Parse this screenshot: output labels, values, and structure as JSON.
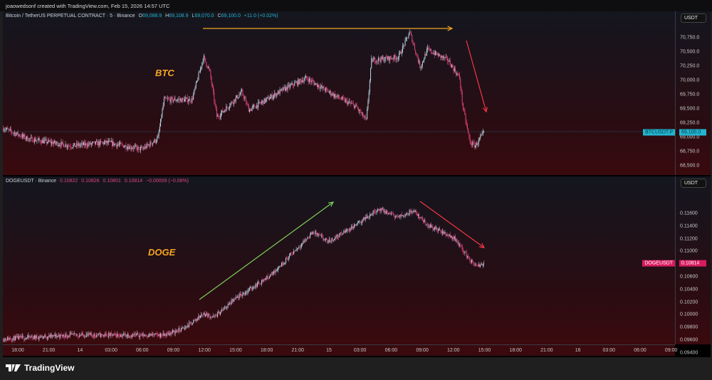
{
  "header": {
    "text": "joaowedsonf created with TradingView.com, Feb 15, 2026 14:57 UTC"
  },
  "btc": {
    "title": "Bitcoin / TetherUS PERPETUAL CONTRACT · 5 · Binance",
    "o": "O",
    "o_val": "69,088.9",
    "h": "H",
    "h_val": "69,108.9",
    "l": "L",
    "l_val": "69,070.0",
    "c": "C",
    "c_val": "69,100.0",
    "change": "+11.0 (+0.02%)",
    "currency": "USDT",
    "symbol_tag": "BTCUSDT.P",
    "last_price": "69,100.0",
    "label": "BTC",
    "ticks": [
      "70,750.0",
      "70,500.0",
      "70,250.0",
      "70,000.0",
      "69,750.0",
      "69,500.0",
      "69,250.0",
      "69,000.0",
      "68,750.0",
      "68,500.0"
    ]
  },
  "doge": {
    "title": "DOGEUSDT · Binance",
    "o_val": "0.10822",
    "h_val": "0.10826",
    "l_val": "0.10801",
    "c_val": "0.10814",
    "change": "−0.00009 (−0.08%)",
    "currency": "USDT",
    "symbol_tag": "DOGEUSDT",
    "last_price": "0.10814",
    "label": "DOGE",
    "ticks": [
      "0.11600",
      "0.11400",
      "0.11200",
      "0.11000",
      "0.10600",
      "0.10400",
      "0.10200",
      "0.10000",
      "0.09800",
      "0.09600",
      "0.09400"
    ]
  },
  "time_axis": [
    "18:00",
    "21:00",
    "14",
    "03:00",
    "06:00",
    "09:00",
    "12:00",
    "15:00",
    "18:00",
    "21:00",
    "15",
    "03:00",
    "06:00",
    "09:00",
    "12:00",
    "15:00",
    "18:00",
    "21:00",
    "16",
    "03:00",
    "06:00",
    "09:00"
  ],
  "footer": {
    "brand": "TradingView"
  },
  "colors": {
    "up": "#b8d4e3",
    "down": "#e0457b",
    "btc_tag": "#22b5d0",
    "doge_tag": "#d81b60",
    "orange": "#f5a623",
    "red": "#f23645",
    "green": "#7ccf5a"
  },
  "chart_data": [
    {
      "type": "candlestick",
      "name": "BTCUSDT.P",
      "interval_minutes": 5,
      "x_unit": "hours since Feb 13 18:00",
      "ylim": [
        68400,
        70900
      ],
      "path": [
        [
          -1.4,
          69160
        ],
        [
          1.0,
          68975
        ],
        [
          5.2,
          68850
        ],
        [
          8.6,
          68910
        ],
        [
          12.0,
          68790
        ],
        [
          13.5,
          68975
        ],
        [
          14.1,
          69660
        ],
        [
          16.8,
          69660
        ],
        [
          17.9,
          70410
        ],
        [
          18.5,
          70160
        ],
        [
          19.2,
          69350
        ],
        [
          21.6,
          69790
        ],
        [
          22.3,
          69480
        ],
        [
          25.7,
          69850
        ],
        [
          27.8,
          70040
        ],
        [
          30.6,
          69730
        ],
        [
          32.6,
          69540
        ],
        [
          33.6,
          69290
        ],
        [
          34.1,
          70350
        ],
        [
          36.7,
          70410
        ],
        [
          37.8,
          70850
        ],
        [
          38.4,
          70480
        ],
        [
          38.8,
          70230
        ],
        [
          39.5,
          70540
        ],
        [
          41.5,
          70350
        ],
        [
          42.6,
          70040
        ],
        [
          42.9,
          69540
        ],
        [
          43.6,
          68910
        ],
        [
          44.1,
          68850
        ],
        [
          45.0,
          69100
        ]
      ]
    },
    {
      "type": "candlestick",
      "name": "DOGEUSDT",
      "interval_minutes": 5,
      "x_unit": "hours since Feb 13 18:00",
      "ylim": [
        0.0938,
        0.118
      ],
      "path": [
        [
          -1.4,
          0.0962
        ],
        [
          5.2,
          0.0968
        ],
        [
          14.1,
          0.0968
        ],
        [
          16.1,
          0.0979
        ],
        [
          17.9,
          0.1002
        ],
        [
          18.9,
          0.0996
        ],
        [
          20.9,
          0.1024
        ],
        [
          24.4,
          0.1063
        ],
        [
          28.5,
          0.1131
        ],
        [
          29.9,
          0.1115
        ],
        [
          32.6,
          0.1142
        ],
        [
          34.7,
          0.1167
        ],
        [
          36.7,
          0.1154
        ],
        [
          38.1,
          0.1165
        ],
        [
          39.5,
          0.1142
        ],
        [
          42.2,
          0.112
        ],
        [
          43.6,
          0.1086
        ],
        [
          44.3,
          0.1075
        ],
        [
          45.0,
          0.1084
        ]
      ]
    }
  ]
}
